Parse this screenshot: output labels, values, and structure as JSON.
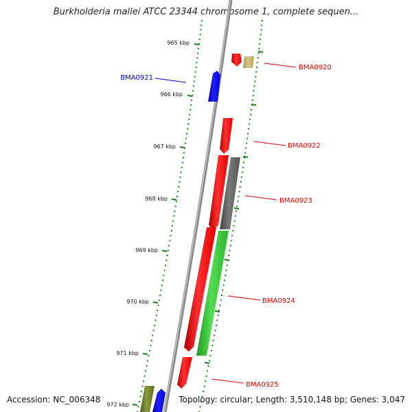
{
  "title": "Burkholderia mallei ATCC 23344 chromosome 1, complete sequen...",
  "accession": "Accession: NC_006348",
  "summary": "Topology: circular; Length: 3,510,148 bp; Genes: 3,047",
  "tick_labels": [
    "965 kbp",
    "966 kbp",
    "967 kbp",
    "968 kbp",
    "969 kbp",
    "970 kbp",
    "971 kbp",
    "972 kbp"
  ],
  "genes": [
    {
      "name": "BMA0920",
      "color": "#dd0000"
    },
    {
      "name": "BMA0921",
      "color": "#0000cc"
    },
    {
      "name": "BMA0922",
      "color": "#dd0000"
    },
    {
      "name": "BMA0923",
      "color": "#dd0000"
    },
    {
      "name": "BMA0924",
      "color": "#dd0000"
    },
    {
      "name": "BMA0925",
      "color": "#dd0000"
    }
  ],
  "colors": {
    "backbone": "#8a8a8a",
    "tick": "#1a7a1a",
    "feature_red": "#ff0000",
    "feature_blue": "#0000ff",
    "feature_green": "#33cc33",
    "feature_gray": "#666666",
    "feature_tan": "#c8b36b",
    "feature_olive": "#6b7a2a"
  }
}
